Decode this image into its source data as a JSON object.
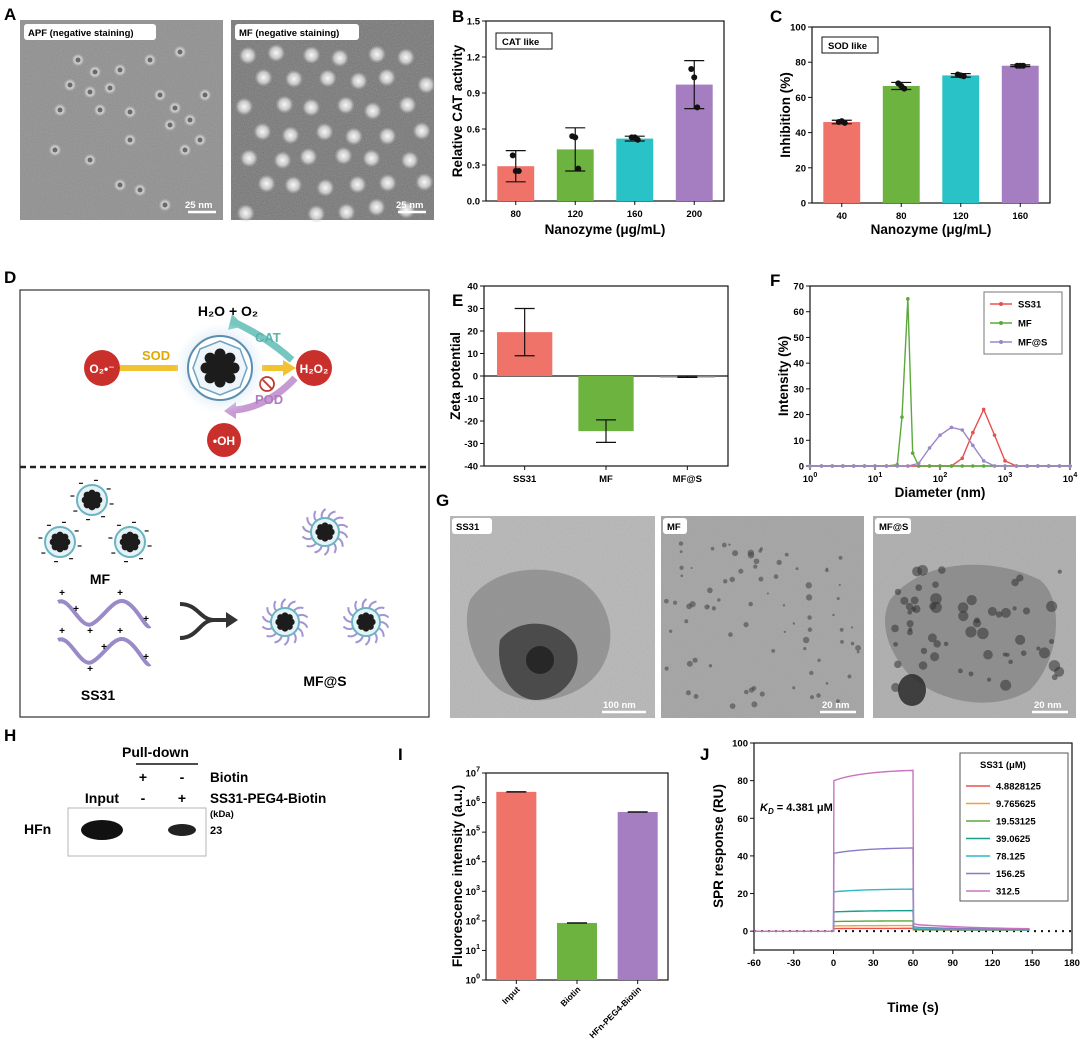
{
  "panel_letters": [
    "A",
    "B",
    "C",
    "D",
    "E",
    "F",
    "G",
    "H",
    "I",
    "J"
  ],
  "panel_a": {
    "left_label": "APF (negative staining)",
    "right_label": "MF (negative staining)",
    "left_scale": "25 nm",
    "right_scale": "25 nm"
  },
  "panel_d": {
    "top_label": "H₂O + O₂",
    "cat": "CAT",
    "sod": "SOD",
    "pod": "POD",
    "superoxide": "O₂•⁻",
    "h2o2": "H₂O₂",
    "oh": "•OH",
    "mf": "MF",
    "ss31": "SS31",
    "mfs": "MF@S"
  },
  "panel_g": {
    "labels": [
      "SS31",
      "MF",
      "MF@S"
    ],
    "scales": [
      "100 nm",
      "20 nm",
      "20 nm"
    ]
  },
  "panel_h": {
    "pulldown": "Pull-down",
    "row1_label": "Biotin",
    "row2_label": "SS31-PEG4-Biotin",
    "row1_signs": [
      "+",
      "-"
    ],
    "row2_signs": [
      "-",
      "+"
    ],
    "input": "Input",
    "protein": "HFn",
    "kda_label": "(kDa)",
    "kda_value": "23"
  },
  "chart_data": [
    {
      "id": "B",
      "type": "bar",
      "tag": "CAT like",
      "categories": [
        "80",
        "120",
        "160",
        "200"
      ],
      "values": [
        0.29,
        0.43,
        0.52,
        0.97
      ],
      "errors": [
        0.13,
        0.18,
        0.02,
        0.2
      ],
      "points": [
        [
          0.38,
          0.25,
          0.25
        ],
        [
          0.54,
          0.27,
          0.53
        ],
        [
          0.53,
          0.51,
          0.53
        ],
        [
          1.1,
          0.78,
          1.03
        ]
      ],
      "colors": [
        "#f0736a",
        "#6db33f",
        "#28c2c7",
        "#a47ec0"
      ],
      "xlabel": "Nanozyme (μg/mL)",
      "ylabel": "Relative CAT activity",
      "ylim": [
        0,
        1.5
      ],
      "yticks": [
        "0.0",
        "0.3",
        "0.6",
        "0.9",
        "1.2",
        "1.5"
      ]
    },
    {
      "id": "C",
      "type": "bar",
      "tag": "SOD like",
      "categories": [
        "40",
        "80",
        "120",
        "160"
      ],
      "values": [
        46,
        66.5,
        72.5,
        78
      ],
      "errors": [
        1,
        2,
        1,
        0.5
      ],
      "points": [
        [
          46,
          45.5,
          46.5
        ],
        [
          68,
          65,
          66.5
        ],
        [
          73,
          72,
          72.5
        ],
        [
          78,
          78,
          78
        ]
      ],
      "colors": [
        "#f0736a",
        "#6db33f",
        "#28c2c7",
        "#a47ec0"
      ],
      "xlabel": "Nanozyme (μg/mL)",
      "ylabel": "Inhibition (%)",
      "ylim": [
        0,
        100
      ],
      "yticks": [
        "0",
        "20",
        "40",
        "60",
        "80",
        "100"
      ]
    },
    {
      "id": "E",
      "type": "bar",
      "categories": [
        "SS31",
        "MF",
        "MF@S"
      ],
      "values": [
        19.5,
        -24.5,
        -0.3
      ],
      "errors": [
        10.5,
        5,
        0.3
      ],
      "colors": [
        "#f0736a",
        "#6db33f",
        "#888888"
      ],
      "xlabel": "",
      "ylabel": "Zeta potential",
      "ylim": [
        -40,
        40
      ],
      "yticks": [
        "-40",
        "-30",
        "-20",
        "-10",
        "0",
        "10",
        "20",
        "30",
        "40"
      ]
    },
    {
      "id": "F",
      "type": "line",
      "xlabel": "Diameter (nm)",
      "ylabel": "Intensity (%)",
      "xscale": "log",
      "xlim": [
        1,
        10000
      ],
      "ylim": [
        0,
        70
      ],
      "yticks": [
        "0",
        "10",
        "20",
        "30",
        "40",
        "50",
        "60",
        "70"
      ],
      "xtick_bases": [
        "10",
        "10",
        "10",
        "10",
        "10"
      ],
      "xtick_exps": [
        "0",
        "1",
        "2",
        "3",
        "4"
      ],
      "legend_position": "top-right",
      "series": [
        {
          "name": "SS31",
          "color": "#e8504f",
          "x": [
            1,
            1.5,
            2.2,
            3.2,
            4.7,
            6.9,
            10,
            15,
            22,
            32,
            47,
            69,
            100,
            150,
            220,
            320,
            470,
            690,
            1000,
            1500,
            2200,
            3200,
            4700,
            6900,
            10000
          ],
          "y": [
            0,
            0,
            0,
            0,
            0,
            0,
            0,
            0,
            0,
            0,
            0,
            0,
            0,
            0,
            3,
            13,
            22,
            12,
            2,
            0,
            0,
            0,
            0,
            0,
            0
          ]
        },
        {
          "name": "MF",
          "color": "#5aa93a",
          "x": [
            1,
            1.5,
            2.2,
            3.2,
            4.7,
            6.9,
            10,
            15,
            22,
            26,
            32,
            38,
            47,
            69,
            100,
            150,
            220,
            320,
            470,
            690,
            1000,
            1500,
            2200,
            3200,
            4700,
            6900,
            10000
          ],
          "y": [
            0,
            0,
            0,
            0,
            0,
            0,
            0,
            0,
            0.5,
            19,
            65,
            5,
            0,
            0,
            0,
            0,
            0,
            0,
            0,
            0,
            0,
            0,
            0,
            0,
            0,
            0,
            0
          ]
        },
        {
          "name": "MF@S",
          "color": "#9a87c8",
          "x": [
            1,
            1.5,
            2.2,
            3.2,
            4.7,
            6.9,
            10,
            15,
            22,
            32,
            47,
            69,
            100,
            150,
            220,
            320,
            470,
            690,
            1000,
            1500,
            2200,
            3200,
            4700,
            6900,
            10000
          ],
          "y": [
            0,
            0,
            0,
            0,
            0,
            0,
            0,
            0,
            0,
            0,
            1,
            7,
            12,
            15,
            14,
            8,
            2,
            0,
            0,
            0,
            0,
            0,
            0,
            0,
            0
          ]
        }
      ]
    },
    {
      "id": "I",
      "type": "bar",
      "categories": [
        "Input",
        "Biotin",
        "HFn-PEG4-Biotin"
      ],
      "values": [
        2300000,
        85,
        480000
      ],
      "colors": [
        "#f0736a",
        "#6db33f",
        "#a47ec0"
      ],
      "xlabel": "",
      "ylabel": "Fluorescence intensity (a.u.)",
      "yscale": "log",
      "ylim": [
        1,
        10000000
      ],
      "ytick_bases": [
        "10",
        "10",
        "10",
        "10",
        "10",
        "10",
        "10",
        "10"
      ],
      "ytick_exps": [
        "0",
        "1",
        "2",
        "3",
        "4",
        "5",
        "6",
        "7"
      ]
    },
    {
      "id": "J",
      "type": "line",
      "xlabel": "Time (s)",
      "ylabel": "SPR response (RU)",
      "xlim": [
        -60,
        180
      ],
      "ylim": [
        -10,
        100
      ],
      "xticks": [
        "-60",
        "-30",
        "0",
        "30",
        "60",
        "90",
        "120",
        "150",
        "180"
      ],
      "yticks": [
        "0",
        "20",
        "40",
        "60",
        "80",
        "100"
      ],
      "legend_title": "SS31 (μM)",
      "kd_prefix": "K",
      "kd_sub": "D",
      "kd_value": "= 4.381 μM",
      "baseline_style": "dotted",
      "series": [
        {
          "name": "4.8828125",
          "color": "#e8504f",
          "plateau": 1.5
        },
        {
          "name": "9.765625",
          "color": "#f2a03d",
          "plateau": 3
        },
        {
          "name": "19.53125",
          "color": "#5aa93a",
          "plateau": 5.5
        },
        {
          "name": "39.0625",
          "color": "#1a9e8f",
          "plateau": 11
        },
        {
          "name": "78.125",
          "color": "#2fb8c8",
          "plateau": 22.5
        },
        {
          "name": "156.25",
          "color": "#8b78c8",
          "plateau": 44.5
        },
        {
          "name": "312.5",
          "color": "#c874c0",
          "plateau": 86
        }
      ]
    }
  ]
}
